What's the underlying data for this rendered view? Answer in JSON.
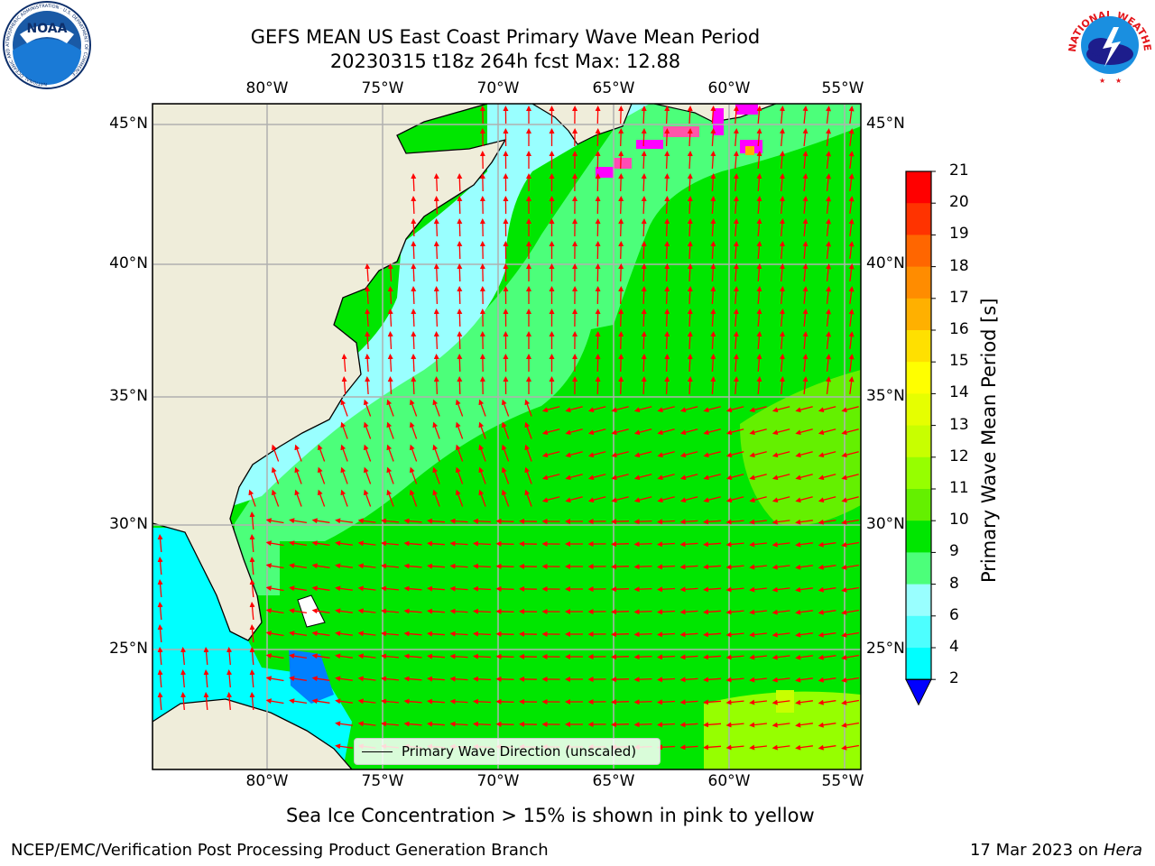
{
  "header": {
    "title_line1": "GEFS MEAN US East Coast Primary Wave Mean Period",
    "title_line2": "20230315 t18z 264h fcst   Max: 12.88"
  },
  "axes": {
    "lon_labels": [
      "80°W",
      "75°W",
      "70°W",
      "65°W",
      "60°W",
      "55°W"
    ],
    "lat_labels": [
      "45°N",
      "40°N",
      "35°N",
      "30°N",
      "25°N"
    ]
  },
  "colorbar": {
    "title": "Primary Wave Mean Period [s]",
    "ticks": [
      "21",
      "20",
      "19",
      "18",
      "17",
      "16",
      "15",
      "14",
      "13",
      "12",
      "11",
      "10",
      "9",
      "8",
      "6",
      "4",
      "2"
    ],
    "colors": [
      "#ff0000",
      "#ff3300",
      "#ff6600",
      "#ff8c00",
      "#ffb000",
      "#ffe000",
      "#ffff00",
      "#e6ff00",
      "#c8ff00",
      "#96ff00",
      "#64f000",
      "#00e600",
      "#4cff7a",
      "#99ffff",
      "#4dffff",
      "#00ffff",
      "#0080ff",
      "#0000ff"
    ]
  },
  "legend": {
    "label": "Primary Wave Direction (unscaled)"
  },
  "notes": {
    "sea_ice": "Sea Ice Concentration > 15% is shown in pink to yellow"
  },
  "footer": {
    "left": "NCEP/EMC/Verification Post Processing Product Generation Branch",
    "date": "17 Mar 2023 on",
    "machine": "Hera"
  },
  "logos": {
    "noaa_text": "NOAA",
    "noaa_ring_text": "NATIONAL OCEANIC AND ATMOSPHERIC ADMINISTRATION · U.S. DEPARTMENT OF COMMERCE",
    "nws_ring_text": "NATIONAL WEATHER SERVICE"
  }
}
